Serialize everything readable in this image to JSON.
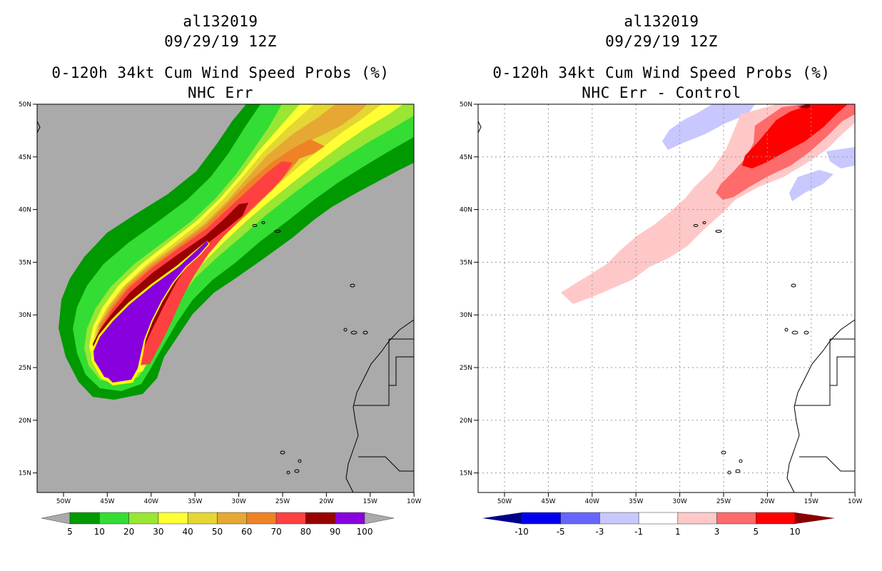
{
  "storm_id": "al132019",
  "datetime": "09/29/19 12Z",
  "left_panel": {
    "title": "0-120h 34kt Cum Wind Speed Probs (%)",
    "subtitle": "NHC Err",
    "colorbar": {
      "labels": [
        "5",
        "10",
        "20",
        "30",
        "40",
        "50",
        "60",
        "70",
        "80",
        "90",
        "100"
      ],
      "colors": [
        "#009900",
        "#33dd33",
        "#99e633",
        "#ffff33",
        "#e6d633",
        "#e6a833",
        "#f08226",
        "#ff4040",
        "#990000",
        "#8800dd"
      ],
      "arrow_color": "#aaaaaa"
    }
  },
  "right_panel": {
    "title": "0-120h 34kt Cum Wind Speed Probs (%)",
    "subtitle": "NHC Err - Control",
    "colorbar": {
      "labels": [
        "-10",
        "-5",
        "-3",
        "-1",
        "1",
        "3",
        "5",
        "10"
      ],
      "colors": [
        "#0000ee",
        "#6666ff",
        "#c8c8ff",
        "#ffffff",
        "#ffc8c8",
        "#ff6a6a",
        "#ff0000"
      ],
      "low_arrow_color": "#000088",
      "high_arrow_color": "#880000"
    }
  },
  "map": {
    "lat_labels": [
      "50N",
      "45N",
      "40N",
      "35N",
      "30N",
      "25N",
      "20N",
      "15N"
    ],
    "lon_labels": [
      "50W",
      "45W",
      "40W",
      "35W",
      "30W",
      "25W",
      "20W",
      "15W",
      "10W"
    ],
    "ocean_color": "#aaaaaa"
  }
}
